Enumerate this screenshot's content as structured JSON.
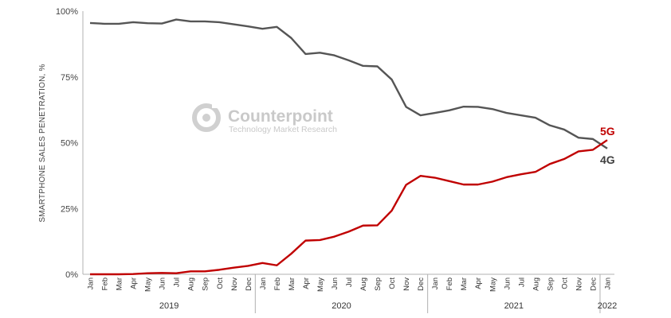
{
  "watermark": {
    "name": "Counterpoint",
    "tagline": "Technology Market Research"
  },
  "chart_data": {
    "type": "line",
    "ylabel": "SMARTPHONE SALES PENETRATION, %",
    "ylim": [
      0,
      100
    ],
    "yticks": [
      "0%",
      "25%",
      "50%",
      "75%",
      "100%"
    ],
    "grid": false,
    "categories": [
      "Jan",
      "Feb",
      "Mar",
      "Apr",
      "May",
      "Jun",
      "Jul",
      "Aug",
      "Sep",
      "Oct",
      "Nov",
      "Dec",
      "Jan",
      "Feb",
      "Mar",
      "Apr",
      "May",
      "Jun",
      "Jul",
      "Aug",
      "Sep",
      "Oct",
      "Nov",
      "Dec",
      "Jan",
      "Feb",
      "Mar",
      "Apr",
      "May",
      "Jun",
      "Jul",
      "Aug",
      "Sep",
      "Oct",
      "Nov",
      "Dec",
      "Jan"
    ],
    "years": [
      {
        "label": "2019",
        "months": 12
      },
      {
        "label": "2020",
        "months": 12
      },
      {
        "label": "2021",
        "months": 12
      },
      {
        "label": "2022",
        "months": 1
      }
    ],
    "series": [
      {
        "name": "4G",
        "color": "#555555",
        "values": [
          95.5,
          95.2,
          95.2,
          95.8,
          95.4,
          95.3,
          96.8,
          96.1,
          96.1,
          95.8,
          95.0,
          94.2,
          93.3,
          94.0,
          89.8,
          83.7,
          84.2,
          83.2,
          81.3,
          79.2,
          79.0,
          74.0,
          63.6,
          60.4,
          61.3,
          62.3,
          63.7,
          63.6,
          62.8,
          61.3,
          60.4,
          59.5,
          56.6,
          55.0,
          51.9,
          51.4,
          47.8
        ]
      },
      {
        "name": "5G",
        "color": "#c00000",
        "values": [
          0.0,
          0.0,
          0.0,
          0.1,
          0.4,
          0.5,
          0.4,
          1.1,
          1.1,
          1.7,
          2.5,
          3.2,
          4.3,
          3.4,
          7.8,
          12.8,
          13.0,
          14.3,
          16.2,
          18.5,
          18.6,
          24.2,
          34.0,
          37.4,
          36.7,
          35.4,
          34.1,
          34.1,
          35.2,
          36.9,
          38.0,
          38.9,
          41.9,
          43.8,
          46.7,
          47.3,
          51.0
        ]
      }
    ]
  }
}
